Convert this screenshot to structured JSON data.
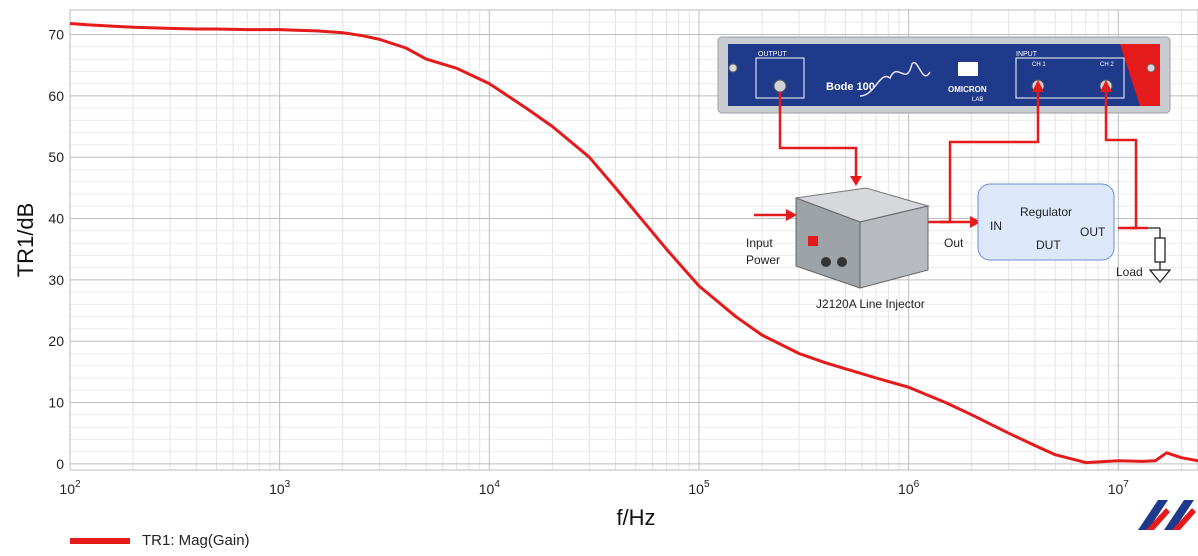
{
  "chart_data": {
    "type": "line",
    "xscale": "log",
    "xlim": [
      100,
      24000000
    ],
    "ylim": [
      -1,
      74
    ],
    "xlabel": "f/Hz",
    "ylabel": "TR1/dB",
    "x_ticks": [
      {
        "base": "10",
        "exp": "2",
        "value": 100
      },
      {
        "base": "10",
        "exp": "3",
        "value": 1000
      },
      {
        "base": "10",
        "exp": "4",
        "value": 10000
      },
      {
        "base": "10",
        "exp": "5",
        "value": 100000
      },
      {
        "base": "10",
        "exp": "6",
        "value": 1000000
      },
      {
        "base": "10",
        "exp": "7",
        "value": 10000000
      }
    ],
    "y_ticks": [
      0,
      10,
      20,
      30,
      40,
      50,
      60,
      70
    ],
    "grid": true,
    "legend_position": "bottom-left",
    "series": [
      {
        "name": "TR1: Mag(Gain)",
        "color": "#e51a1a",
        "x": [
          100,
          120,
          150,
          200,
          300,
          400,
          500,
          700,
          1000,
          1200,
          1500,
          2000,
          2500,
          3000,
          4000,
          5000,
          7000,
          10000,
          15000,
          20000,
          30000,
          40000,
          50000,
          70000,
          100000,
          150000,
          200000,
          300000,
          400000,
          500000,
          700000,
          1000000,
          1500000,
          2000000,
          3000000,
          4000000,
          5000000,
          7000000,
          10000000,
          13000000,
          15000000,
          17000000,
          20000000,
          24000000
        ],
        "y": [
          71.8,
          71.6,
          71.4,
          71.2,
          71.0,
          70.9,
          70.9,
          70.8,
          70.8,
          70.7,
          70.6,
          70.3,
          69.8,
          69.2,
          67.8,
          66.0,
          64.5,
          62.0,
          58.0,
          55.0,
          50.0,
          45.0,
          41.0,
          35.0,
          29.0,
          24.0,
          21.0,
          18.0,
          16.5,
          15.5,
          14.0,
          12.5,
          10.0,
          8.0,
          5.0,
          3.0,
          1.5,
          0.2,
          0.5,
          0.4,
          0.5,
          1.8,
          1.0,
          0.5
        ]
      }
    ]
  },
  "diagram": {
    "device_name": "Bode 100",
    "output_label": "OUTPUT",
    "input_label": "INPUT",
    "ch1_label": "CH 1",
    "ch2_label": "CH 2",
    "brand": "OMICRON",
    "brand_sub": "LAB",
    "input_power": "Input",
    "input_power2": "Power",
    "injector_label": "J2120A Line Injector",
    "out_label": "Out",
    "regulator": "Regulator",
    "reg_in": "IN",
    "reg_out": "OUT",
    "reg_dut": "DUT",
    "load_label": "Load"
  }
}
